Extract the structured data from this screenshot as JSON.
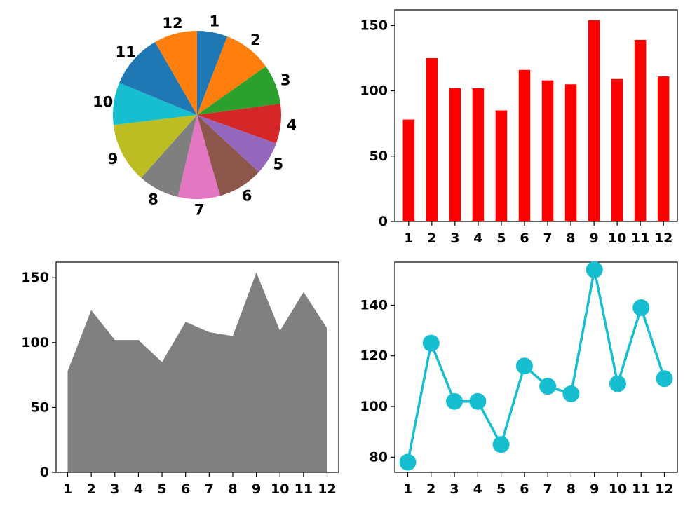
{
  "chart_data": [
    {
      "type": "pie",
      "labels": [
        "1",
        "2",
        "3",
        "4",
        "5",
        "6",
        "7",
        "8",
        "9",
        "10",
        "11",
        "12"
      ],
      "values": [
        78,
        125,
        102,
        102,
        85,
        116,
        108,
        105,
        154,
        109,
        139,
        111
      ],
      "colors": [
        "#1f77b4",
        "#ff7f0e",
        "#2ca02c",
        "#d62728",
        "#9467bd",
        "#8c564b",
        "#e377c2",
        "#7f7f7f",
        "#bcbd22",
        "#17becf",
        "#1f77b4",
        "#ff7f0e"
      ],
      "start_angle_deg": 90,
      "direction": "clockwise"
    },
    {
      "type": "bar",
      "categories": [
        "1",
        "2",
        "3",
        "4",
        "5",
        "6",
        "7",
        "8",
        "9",
        "10",
        "11",
        "12"
      ],
      "values": [
        78,
        125,
        102,
        102,
        85,
        116,
        108,
        105,
        154,
        109,
        139,
        111
      ],
      "color": "#ff0000",
      "ylim": [
        0,
        162
      ],
      "yticks": [
        0,
        50,
        100,
        150
      ]
    },
    {
      "type": "area",
      "x": [
        1,
        2,
        3,
        4,
        5,
        6,
        7,
        8,
        9,
        10,
        11,
        12
      ],
      "values": [
        78,
        125,
        102,
        102,
        85,
        116,
        108,
        105,
        154,
        109,
        139,
        111
      ],
      "color": "#808080",
      "ylim": [
        0,
        162
      ],
      "yticks": [
        0,
        50,
        100,
        150
      ]
    },
    {
      "type": "line",
      "x": [
        1,
        2,
        3,
        4,
        5,
        6,
        7,
        8,
        9,
        10,
        11,
        12
      ],
      "values": [
        78,
        125,
        102,
        102,
        85,
        116,
        108,
        105,
        154,
        109,
        139,
        111
      ],
      "color": "#17becf",
      "marker": "circle",
      "ylim": [
        74,
        157
      ],
      "yticks": [
        80,
        100,
        120,
        140
      ]
    }
  ]
}
